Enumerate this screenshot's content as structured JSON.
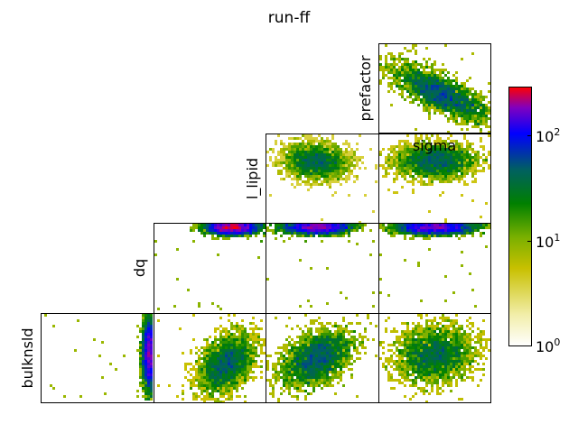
{
  "chart_data": {
    "type": "heatmap",
    "title": "run-ff",
    "layout": "lower-triangle corner plot of pairwise 2D histograms",
    "variables": [
      "bulknsld",
      "dq",
      "l_lipid",
      "sigma",
      "prefactor"
    ],
    "panels": [
      {
        "row": "prefactor",
        "col": "sigma",
        "peak_position": [
          0.55,
          0.55
        ],
        "spread": [
          0.22,
          0.16
        ],
        "correlation": 0.75,
        "peak_counts": 60
      },
      {
        "row": "l_lipid",
        "col": "l_lipid",
        "peak_position": [
          0.45,
          0.3
        ],
        "spread": [
          0.15,
          0.1
        ],
        "correlation": 0.1,
        "peak_counts": 40
      },
      {
        "row": "l_lipid",
        "col": "sigma",
        "peak_position": [
          0.5,
          0.3
        ],
        "spread": [
          0.18,
          0.1
        ],
        "correlation": 0.0,
        "peak_counts": 40
      },
      {
        "row": "dq",
        "col": "dq",
        "peak_position": [
          0.7,
          0.04
        ],
        "spread": [
          0.12,
          0.04
        ],
        "correlation": 0.0,
        "peak_counts": 300
      },
      {
        "row": "dq",
        "col": "l_lipid",
        "peak_position": [
          0.45,
          0.04
        ],
        "spread": [
          0.15,
          0.04
        ],
        "correlation": 0.0,
        "peak_counts": 200
      },
      {
        "row": "dq",
        "col": "sigma",
        "peak_position": [
          0.5,
          0.04
        ],
        "spread": [
          0.18,
          0.04
        ],
        "correlation": 0.0,
        "peak_counts": 200
      },
      {
        "row": "bulknsld",
        "col": "dq",
        "peak_position": [
          0.97,
          0.45
        ],
        "spread": [
          0.03,
          0.2
        ],
        "correlation": 0.0,
        "peak_counts": 200
      },
      {
        "row": "bulknsld",
        "col": "l_lipid",
        "peak_position": [
          0.65,
          0.55
        ],
        "spread": [
          0.13,
          0.17
        ],
        "correlation": -0.4,
        "peak_counts": 50
      },
      {
        "row": "bulknsld",
        "col": "sigma",
        "peak_position": [
          0.45,
          0.5
        ],
        "spread": [
          0.16,
          0.16
        ],
        "correlation": -0.4,
        "peak_counts": 50
      },
      {
        "row": "bulknsld",
        "col": "prefactor",
        "peak_position": [
          0.5,
          0.45
        ],
        "spread": [
          0.18,
          0.16
        ],
        "correlation": -0.1,
        "peak_counts": 40
      }
    ],
    "colorbar": {
      "scale": "log",
      "range": [
        1,
        300
      ],
      "tick_bases": [
        "10",
        "10",
        "10"
      ],
      "tick_exponents": [
        "0",
        "1",
        "2"
      ],
      "colors": [
        "#ffffff",
        "#c8c000",
        "#008000",
        "#0000ff",
        "#ff0000"
      ]
    },
    "ticks": "none",
    "grid": false
  }
}
